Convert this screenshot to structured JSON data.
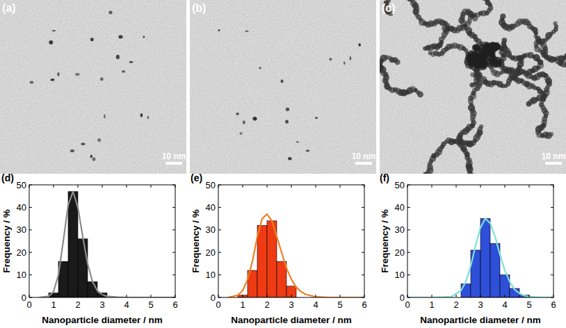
{
  "images": [
    {
      "label": "(a)",
      "scale_bar": "10 nm"
    },
    {
      "label": "(b)",
      "scale_bar": "10 nm"
    },
    {
      "label": "(c)",
      "scale_bar": "10 nm"
    }
  ],
  "chart_data": [
    {
      "type": "histogram",
      "title": "(d)",
      "x_label": "Nanoparticle diameter / nm",
      "y_label": "Frequency / %",
      "bins": [
        0.8,
        1.2,
        1.6,
        2.0,
        2.4,
        2.8,
        3.2
      ],
      "values": [
        2,
        16,
        47,
        26,
        7,
        2
      ],
      "color": "#1a1a1a",
      "xlim": [
        0,
        6
      ],
      "xticks": [
        0,
        1,
        2,
        3,
        4,
        5,
        6
      ],
      "ylim": [
        0,
        50
      ],
      "yticks": [
        0,
        10,
        20,
        30,
        40,
        50
      ],
      "series": [
        {
          "type": "line",
          "color": "#8c8c8c",
          "x": [
            0.4,
            0.8,
            1.0,
            1.2,
            1.4,
            1.6,
            1.8,
            2.0,
            2.2,
            2.4,
            2.6,
            2.8,
            3.0,
            3.2,
            3.6,
            4.0,
            5.0,
            6.0
          ],
          "values": [
            0,
            0.5,
            2.5,
            10,
            25,
            41,
            47,
            40,
            27,
            15,
            7,
            3,
            1.2,
            0.5,
            0.1,
            0,
            0,
            0
          ]
        }
      ]
    },
    {
      "type": "histogram",
      "title": "(e)",
      "x_label": "Nanoparticle diameter / nm",
      "y_label": "Frequency / %",
      "bins": [
        0.8,
        1.2,
        1.6,
        2.0,
        2.4,
        2.8,
        3.2
      ],
      "values": [
        1,
        12,
        32,
        34,
        16,
        5
      ],
      "color": "#ee3b14",
      "xlim": [
        0,
        6
      ],
      "xticks": [
        0,
        1,
        2,
        3,
        4,
        5,
        6
      ],
      "ylim": [
        0,
        50
      ],
      "yticks": [
        0,
        10,
        20,
        30,
        40,
        50
      ],
      "series": [
        {
          "type": "line",
          "color": "#f07f22",
          "x": [
            0.4,
            0.8,
            1.0,
            1.2,
            1.4,
            1.6,
            1.8,
            2.0,
            2.2,
            2.4,
            2.6,
            2.8,
            3.0,
            3.2,
            3.4,
            3.6,
            4.0,
            4.5,
            5.0,
            6.0
          ],
          "values": [
            0,
            1,
            3,
            8,
            16,
            27,
            35,
            37,
            34,
            27,
            20,
            13,
            8,
            4.5,
            2.5,
            1.3,
            0.3,
            0,
            0,
            0
          ]
        }
      ]
    },
    {
      "type": "histogram",
      "title": "(f)",
      "x_label": "Nanoparticle diameter / nm",
      "y_label": "Frequency / %",
      "bins": [
        2.2,
        2.6,
        3.0,
        3.4,
        3.8,
        4.2,
        4.6,
        5.0
      ],
      "values": [
        6,
        21,
        35,
        24,
        10,
        4,
        1
      ],
      "color": "#2e4fd8",
      "xlim": [
        0,
        6
      ],
      "xticks": [
        0,
        1,
        2,
        3,
        4,
        5,
        6
      ],
      "ylim": [
        0,
        50
      ],
      "yticks": [
        0,
        10,
        20,
        30,
        40,
        50
      ],
      "series": [
        {
          "type": "line",
          "color": "#7fe0d8",
          "x": [
            0,
            1.0,
            1.8,
            2.2,
            2.4,
            2.6,
            2.8,
            3.0,
            3.2,
            3.4,
            3.6,
            3.8,
            4.0,
            4.2,
            4.4,
            4.6,
            4.8,
            5.0,
            5.5,
            6.0
          ],
          "values": [
            0,
            0,
            0.3,
            3,
            7,
            14,
            23,
            31,
            35,
            33,
            27,
            19,
            12,
            7,
            3.5,
            1.8,
            0.8,
            0.3,
            0,
            0
          ]
        }
      ]
    }
  ]
}
